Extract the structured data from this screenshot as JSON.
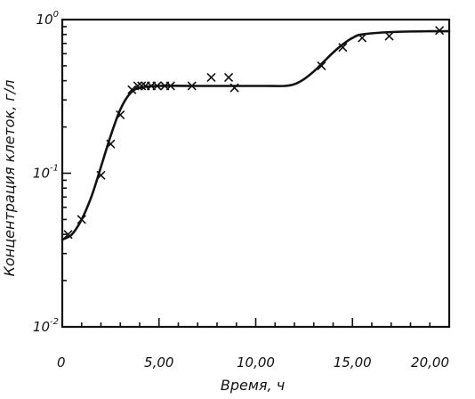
{
  "chart_data": {
    "type": "scatter",
    "xlabel": "Время, ч",
    "ylabel": "Концентрация клеток, г/л",
    "xlim": [
      0,
      20
    ],
    "ylim": [
      0.01,
      1
    ],
    "y_scale": "log",
    "grid": false,
    "x_ticks": [
      {
        "value": 0,
        "label": "0"
      },
      {
        "value": 5,
        "label": "5,00"
      },
      {
        "value": 10,
        "label": "10,00"
      },
      {
        "value": 15,
        "label": "15,00"
      },
      {
        "value": 20,
        "label": "20,00"
      }
    ],
    "y_ticks": [
      {
        "value": 0.01,
        "mantissa": "10",
        "exponent": "-2"
      },
      {
        "value": 0.1,
        "mantissa": "10",
        "exponent": "-1"
      },
      {
        "value": 1,
        "mantissa": "10",
        "exponent": "0"
      }
    ],
    "points": {
      "x": [
        0.3,
        1.0,
        2.0,
        2.5,
        3.0,
        3.6,
        3.9,
        4.1,
        4.3,
        4.6,
        4.9,
        5.3,
        5.6,
        6.7,
        7.7,
        8.6,
        8.9,
        13.4,
        14.5,
        15.5,
        16.9,
        19.5
      ],
      "y": [
        0.04,
        0.05,
        0.097,
        0.155,
        0.24,
        0.35,
        0.37,
        0.37,
        0.37,
        0.37,
        0.37,
        0.37,
        0.37,
        0.37,
        0.42,
        0.42,
        0.36,
        0.5,
        0.66,
        0.76,
        0.78,
        0.85
      ]
    },
    "fit_curve": {
      "x": [
        0,
        0.5,
        1.0,
        1.5,
        2.0,
        2.5,
        3.0,
        3.5,
        4.0,
        5.0,
        7.0,
        9.0,
        10.5,
        11.5,
        12.0,
        12.5,
        13.0,
        13.5,
        14.0,
        14.5,
        15.0,
        15.5,
        17.0,
        19.0,
        20.0
      ],
      "y": [
        0.037,
        0.04,
        0.05,
        0.07,
        0.11,
        0.175,
        0.26,
        0.33,
        0.36,
        0.37,
        0.37,
        0.37,
        0.37,
        0.37,
        0.38,
        0.41,
        0.46,
        0.53,
        0.61,
        0.69,
        0.76,
        0.8,
        0.83,
        0.84,
        0.84
      ]
    }
  }
}
